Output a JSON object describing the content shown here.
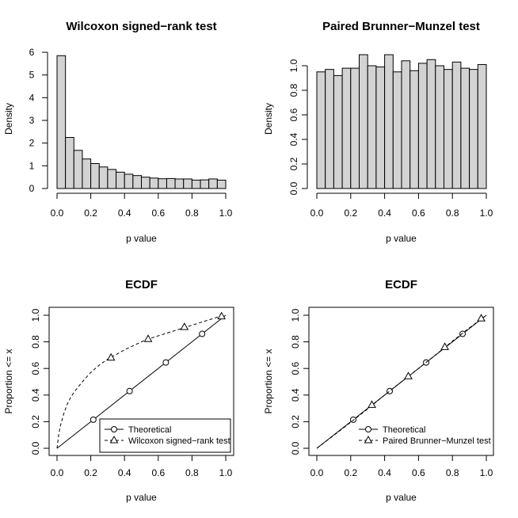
{
  "chart_data": [
    {
      "type": "histogram",
      "title": "Wilcoxon signed−rank test",
      "xlabel": "p value",
      "ylabel": "Density",
      "xlim": [
        0,
        1
      ],
      "ylim": [
        0,
        6
      ],
      "xticks": [
        "0.0",
        "0.2",
        "0.4",
        "0.6",
        "0.8",
        "1.0"
      ],
      "yticks": [
        "0",
        "1",
        "2",
        "3",
        "4",
        "5",
        "6"
      ],
      "yticks_rotated": false,
      "bin_width": 0.05,
      "bin_starts": [
        0.0,
        0.05,
        0.1,
        0.15,
        0.2,
        0.25,
        0.3,
        0.35,
        0.4,
        0.45,
        0.5,
        0.55,
        0.6,
        0.65,
        0.7,
        0.75,
        0.8,
        0.85,
        0.9,
        0.95
      ],
      "densities": [
        5.85,
        2.25,
        1.68,
        1.3,
        1.1,
        0.95,
        0.84,
        0.72,
        0.63,
        0.57,
        0.5,
        0.46,
        0.43,
        0.44,
        0.42,
        0.42,
        0.37,
        0.38,
        0.42,
        0.37
      ],
      "bar_color": "#d3d3d3"
    },
    {
      "type": "histogram",
      "title": "Paired Brunner−Munzel test",
      "xlabel": "p value",
      "ylabel": "Density",
      "xlim": [
        0,
        1
      ],
      "ylim": [
        0,
        1.1
      ],
      "xticks": [
        "0.0",
        "0.2",
        "0.4",
        "0.6",
        "0.8",
        "1.0"
      ],
      "yticks": [
        "0.0",
        "0.2",
        "0.4",
        "0.6",
        "0.8",
        "1.0"
      ],
      "yticks_rotated": true,
      "bin_width": 0.05,
      "bin_starts": [
        0.0,
        0.05,
        0.1,
        0.15,
        0.2,
        0.25,
        0.3,
        0.35,
        0.4,
        0.45,
        0.5,
        0.55,
        0.6,
        0.65,
        0.7,
        0.75,
        0.8,
        0.85,
        0.9,
        0.95
      ],
      "densities": [
        0.95,
        0.97,
        0.92,
        0.98,
        0.98,
        1.09,
        1.0,
        0.99,
        1.09,
        0.95,
        1.04,
        0.96,
        1.02,
        1.05,
        1.0,
        0.97,
        1.03,
        0.98,
        0.97,
        1.01
      ],
      "bar_color": "#d3d3d3"
    },
    {
      "type": "line",
      "title": "ECDF",
      "xlabel": "p value",
      "ylabel": "Proportion <= x",
      "xlim": [
        0,
        1
      ],
      "ylim": [
        0,
        1
      ],
      "xticks": [
        "0.0",
        "0.2",
        "0.4",
        "0.6",
        "0.8",
        "1.0"
      ],
      "yticks": [
        "0.0",
        "0.2",
        "0.4",
        "0.6",
        "0.8",
        "1.0"
      ],
      "yticks_rotated": true,
      "legend": "bottom-right",
      "series": [
        {
          "name": "Theoretical",
          "line": "solid",
          "marker": "circle",
          "x": [
            0.0,
            1.0
          ],
          "y": [
            0.0,
            1.0
          ],
          "marker_x": [
            0.215,
            0.43,
            0.645,
            0.86
          ],
          "marker_y": [
            0.215,
            0.43,
            0.645,
            0.86
          ]
        },
        {
          "name": "Wilcoxon signed−rank test",
          "line": "dashed",
          "marker": "triangle",
          "x": [
            0.0,
            0.01,
            0.02,
            0.04,
            0.06,
            0.08,
            0.1,
            0.15,
            0.2,
            0.25,
            0.3,
            0.35,
            0.4,
            0.45,
            0.5,
            0.55,
            0.6,
            0.65,
            0.7,
            0.75,
            0.8,
            0.85,
            0.9,
            0.95,
            1.0
          ],
          "y": [
            0.0,
            0.1,
            0.17,
            0.26,
            0.33,
            0.38,
            0.42,
            0.5,
            0.57,
            0.625,
            0.67,
            0.705,
            0.74,
            0.77,
            0.8,
            0.825,
            0.845,
            0.865,
            0.885,
            0.905,
            0.925,
            0.945,
            0.965,
            0.985,
            1.0
          ],
          "marker_x": [
            0.32,
            0.54,
            0.755,
            0.975
          ],
          "marker_y": [
            0.68,
            0.82,
            0.91,
            0.99
          ]
        }
      ]
    },
    {
      "type": "line",
      "title": "ECDF",
      "xlabel": "p value",
      "ylabel": "Proportion <= x",
      "xlim": [
        0,
        1
      ],
      "ylim": [
        0,
        1
      ],
      "xticks": [
        "0.0",
        "0.2",
        "0.4",
        "0.6",
        "0.8",
        "1.0"
      ],
      "yticks": [
        "0.0",
        "0.2",
        "0.4",
        "0.6",
        "0.8",
        "1.0"
      ],
      "yticks_rotated": true,
      "legend": "bottom-right",
      "series": [
        {
          "name": "Theoretical",
          "line": "solid",
          "marker": "circle",
          "x": [
            0.0,
            1.0
          ],
          "y": [
            0.0,
            1.0
          ],
          "marker_x": [
            0.215,
            0.43,
            0.645,
            0.86
          ],
          "marker_y": [
            0.215,
            0.43,
            0.645,
            0.86
          ]
        },
        {
          "name": "Paired Brunner−Munzel test",
          "line": "dashed",
          "marker": "triangle",
          "x": [
            0.0,
            0.1,
            0.2,
            0.3,
            0.4,
            0.5,
            0.6,
            0.7,
            0.8,
            0.9,
            1.0
          ],
          "y": [
            0.0,
            0.097,
            0.196,
            0.296,
            0.4,
            0.5,
            0.6,
            0.702,
            0.805,
            0.905,
            1.0
          ],
          "marker_x": [
            0.325,
            0.54,
            0.755,
            0.97
          ],
          "marker_y": [
            0.325,
            0.54,
            0.76,
            0.975
          ]
        }
      ]
    }
  ]
}
